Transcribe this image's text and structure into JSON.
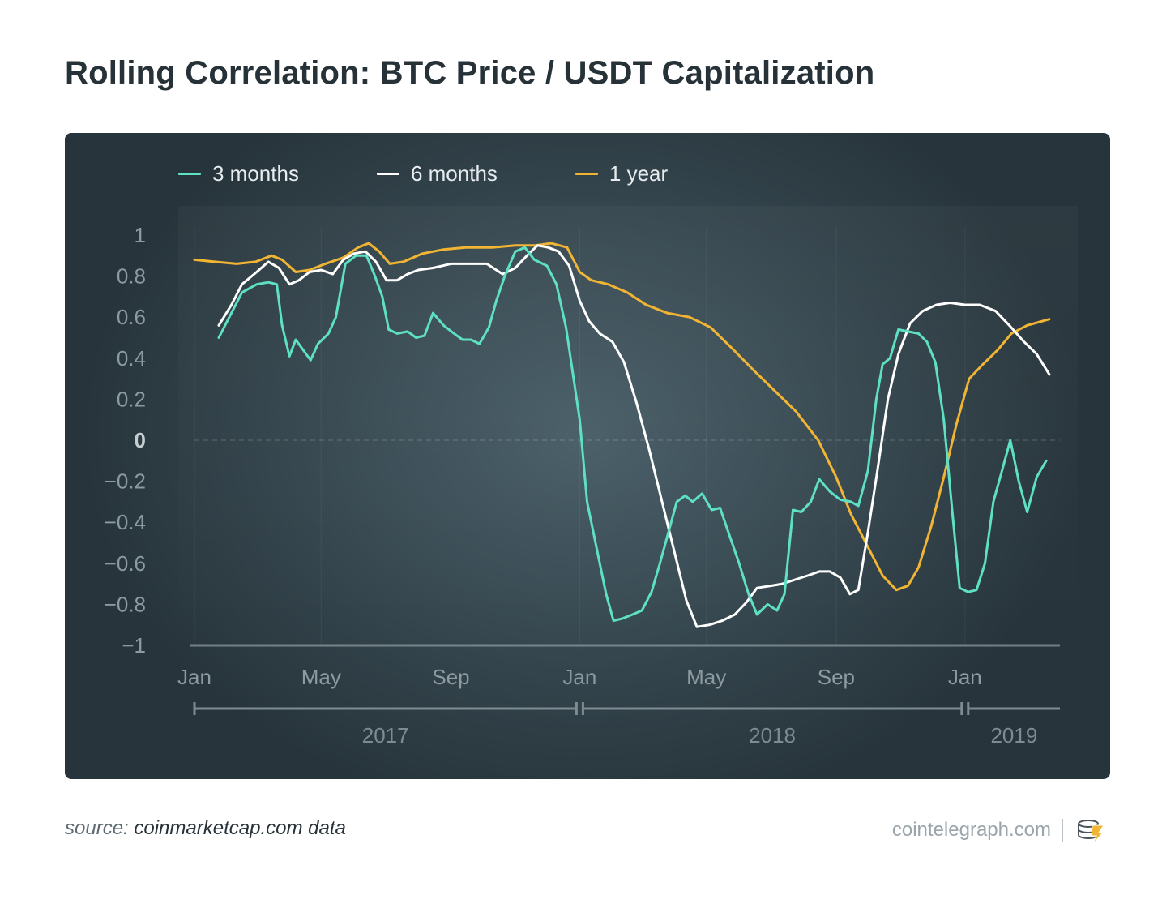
{
  "title": "Rolling Correlation: BTC Price / USDT Capitalization",
  "source": {
    "prefix": "source:",
    "value": "coinmarketcap.com data"
  },
  "brand": {
    "text": "cointelegraph.com",
    "logo_icon": "cointelegraph-logo-icon"
  },
  "colors": {
    "three_months": "#5ee0c4",
    "six_months": "#ffffff",
    "one_year": "#f2b533"
  },
  "chart_data": {
    "type": "line",
    "title": "Rolling Correlation: BTC Price / USDT Capitalization",
    "xlabel": "",
    "ylabel": "",
    "ylim": [
      -1,
      1
    ],
    "xlim": [
      "2017-01-01",
      "2019-04-01"
    ],
    "grid": true,
    "legend": "top-left",
    "y_ticks": [
      {
        "value": 1,
        "label": "1"
      },
      {
        "value": 0.8,
        "label": "0.8"
      },
      {
        "value": 0.6,
        "label": "0.6"
      },
      {
        "value": 0.4,
        "label": "0.4"
      },
      {
        "value": 0.2,
        "label": "0.2"
      },
      {
        "value": 0,
        "label": "0"
      },
      {
        "value": -0.2,
        "label": "−0.2"
      },
      {
        "value": -0.4,
        "label": "−0.4"
      },
      {
        "value": -0.6,
        "label": "−0.6"
      },
      {
        "value": -0.8,
        "label": "−0.8"
      },
      {
        "value": -1,
        "label": "−1"
      }
    ],
    "x_ticks": [
      {
        "date": "2017-01-01",
        "label": "Jan"
      },
      {
        "date": "2017-05-01",
        "label": "May"
      },
      {
        "date": "2017-09-01",
        "label": "Sep"
      },
      {
        "date": "2018-01-01",
        "label": "Jan"
      },
      {
        "date": "2018-05-01",
        "label": "May"
      },
      {
        "date": "2018-09-01",
        "label": "Sep"
      },
      {
        "date": "2019-01-01",
        "label": "Jan"
      }
    ],
    "year_labels": [
      {
        "label": "2017",
        "start": "2017-01-01",
        "end": "2018-01-01"
      },
      {
        "label": "2018",
        "start": "2018-01-01",
        "end": "2019-01-01"
      },
      {
        "label": "2019",
        "start": "2019-01-01",
        "end": "2019-04-01"
      }
    ],
    "series": [
      {
        "name": "3 months",
        "color": "#5ee0c4",
        "points": [
          [
            "2017-01-24",
            0.5
          ],
          [
            "2017-02-05",
            0.62
          ],
          [
            "2017-02-15",
            0.72
          ],
          [
            "2017-03-01",
            0.76
          ],
          [
            "2017-03-12",
            0.77
          ],
          [
            "2017-03-20",
            0.76
          ],
          [
            "2017-03-25",
            0.56
          ],
          [
            "2017-04-01",
            0.41
          ],
          [
            "2017-04-07",
            0.49
          ],
          [
            "2017-04-14",
            0.44
          ],
          [
            "2017-04-21",
            0.39
          ],
          [
            "2017-04-28",
            0.47
          ],
          [
            "2017-05-08",
            0.52
          ],
          [
            "2017-05-15",
            0.6
          ],
          [
            "2017-05-24",
            0.86
          ],
          [
            "2017-06-03",
            0.9
          ],
          [
            "2017-06-13",
            0.9
          ],
          [
            "2017-06-21",
            0.8
          ],
          [
            "2017-06-28",
            0.7
          ],
          [
            "2017-07-04",
            0.54
          ],
          [
            "2017-07-12",
            0.52
          ],
          [
            "2017-07-22",
            0.53
          ],
          [
            "2017-07-30",
            0.5
          ],
          [
            "2017-08-07",
            0.51
          ],
          [
            "2017-08-15",
            0.62
          ],
          [
            "2017-08-25",
            0.56
          ],
          [
            "2017-09-04",
            0.52
          ],
          [
            "2017-09-12",
            0.49
          ],
          [
            "2017-09-20",
            0.49
          ],
          [
            "2017-09-28",
            0.47
          ],
          [
            "2017-10-07",
            0.55
          ],
          [
            "2017-10-14",
            0.68
          ],
          [
            "2017-10-22",
            0.8
          ],
          [
            "2017-11-01",
            0.92
          ],
          [
            "2017-11-10",
            0.94
          ],
          [
            "2017-11-19",
            0.88
          ],
          [
            "2017-12-01",
            0.85
          ],
          [
            "2017-12-10",
            0.76
          ],
          [
            "2017-12-19",
            0.55
          ],
          [
            "2018-01-01",
            0.1
          ],
          [
            "2018-01-08",
            -0.3
          ],
          [
            "2018-01-18",
            -0.55
          ],
          [
            "2018-01-26",
            -0.75
          ],
          [
            "2018-02-02",
            -0.88
          ],
          [
            "2018-02-10",
            -0.87
          ],
          [
            "2018-02-20",
            -0.85
          ],
          [
            "2018-03-01",
            -0.83
          ],
          [
            "2018-03-10",
            -0.74
          ],
          [
            "2018-03-18",
            -0.6
          ],
          [
            "2018-03-26",
            -0.45
          ],
          [
            "2018-04-03",
            -0.3
          ],
          [
            "2018-04-11",
            -0.27
          ],
          [
            "2018-04-18",
            -0.3
          ],
          [
            "2018-04-27",
            -0.26
          ],
          [
            "2018-05-06",
            -0.34
          ],
          [
            "2018-05-14",
            -0.33
          ],
          [
            "2018-05-22",
            -0.45
          ],
          [
            "2018-06-01",
            -0.6
          ],
          [
            "2018-06-10",
            -0.75
          ],
          [
            "2018-06-18",
            -0.85
          ],
          [
            "2018-06-28",
            -0.8
          ],
          [
            "2018-07-07",
            -0.83
          ],
          [
            "2018-07-14",
            -0.75
          ],
          [
            "2018-07-22",
            -0.34
          ],
          [
            "2018-07-30",
            -0.35
          ],
          [
            "2018-08-08",
            -0.3
          ],
          [
            "2018-08-16",
            -0.19
          ],
          [
            "2018-08-26",
            -0.25
          ],
          [
            "2018-09-05",
            -0.29
          ],
          [
            "2018-09-15",
            -0.3
          ],
          [
            "2018-09-22",
            -0.32
          ],
          [
            "2018-10-01",
            -0.15
          ],
          [
            "2018-10-09",
            0.2
          ],
          [
            "2018-10-15",
            0.37
          ],
          [
            "2018-10-22",
            0.4
          ],
          [
            "2018-10-30",
            0.54
          ],
          [
            "2018-11-08",
            0.53
          ],
          [
            "2018-11-18",
            0.52
          ],
          [
            "2018-11-26",
            0.48
          ],
          [
            "2018-12-04",
            0.38
          ],
          [
            "2018-12-12",
            0.1
          ],
          [
            "2018-12-20",
            -0.35
          ],
          [
            "2018-12-27",
            -0.72
          ],
          [
            "2019-01-04",
            -0.74
          ],
          [
            "2019-01-12",
            -0.73
          ],
          [
            "2019-01-20",
            -0.6
          ],
          [
            "2019-01-28",
            -0.3
          ],
          [
            "2019-02-05",
            -0.15
          ],
          [
            "2019-02-13",
            0.0
          ],
          [
            "2019-02-21",
            -0.2
          ],
          [
            "2019-03-01",
            -0.35
          ],
          [
            "2019-03-10",
            -0.18
          ],
          [
            "2019-03-19",
            -0.1
          ]
        ]
      },
      {
        "name": "6 months",
        "color": "#ffffff",
        "points": [
          [
            "2017-01-24",
            0.56
          ],
          [
            "2017-02-05",
            0.66
          ],
          [
            "2017-02-15",
            0.76
          ],
          [
            "2017-03-01",
            0.82
          ],
          [
            "2017-03-12",
            0.87
          ],
          [
            "2017-03-22",
            0.84
          ],
          [
            "2017-04-01",
            0.76
          ],
          [
            "2017-04-10",
            0.78
          ],
          [
            "2017-04-20",
            0.82
          ],
          [
            "2017-05-01",
            0.83
          ],
          [
            "2017-05-12",
            0.81
          ],
          [
            "2017-05-22",
            0.88
          ],
          [
            "2017-06-01",
            0.91
          ],
          [
            "2017-06-12",
            0.92
          ],
          [
            "2017-06-22",
            0.87
          ],
          [
            "2017-07-02",
            0.78
          ],
          [
            "2017-07-12",
            0.78
          ],
          [
            "2017-07-22",
            0.81
          ],
          [
            "2017-08-01",
            0.83
          ],
          [
            "2017-08-15",
            0.84
          ],
          [
            "2017-09-01",
            0.86
          ],
          [
            "2017-09-20",
            0.86
          ],
          [
            "2017-10-05",
            0.86
          ],
          [
            "2017-10-20",
            0.81
          ],
          [
            "2017-11-01",
            0.84
          ],
          [
            "2017-11-12",
            0.9
          ],
          [
            "2017-11-22",
            0.95
          ],
          [
            "2017-12-02",
            0.94
          ],
          [
            "2017-12-12",
            0.92
          ],
          [
            "2017-12-22",
            0.85
          ],
          [
            "2018-01-01",
            0.68
          ],
          [
            "2018-01-10",
            0.58
          ],
          [
            "2018-01-20",
            0.52
          ],
          [
            "2018-02-01",
            0.48
          ],
          [
            "2018-02-12",
            0.38
          ],
          [
            "2018-02-24",
            0.18
          ],
          [
            "2018-03-08",
            -0.05
          ],
          [
            "2018-03-20",
            -0.3
          ],
          [
            "2018-04-01",
            -0.55
          ],
          [
            "2018-04-12",
            -0.78
          ],
          [
            "2018-04-22",
            -0.91
          ],
          [
            "2018-05-04",
            -0.9
          ],
          [
            "2018-05-16",
            -0.88
          ],
          [
            "2018-05-28",
            -0.85
          ],
          [
            "2018-06-08",
            -0.79
          ],
          [
            "2018-06-18",
            -0.72
          ],
          [
            "2018-07-01",
            -0.71
          ],
          [
            "2018-07-12",
            -0.7
          ],
          [
            "2018-07-24",
            -0.68
          ],
          [
            "2018-08-05",
            -0.66
          ],
          [
            "2018-08-16",
            -0.64
          ],
          [
            "2018-08-26",
            -0.64
          ],
          [
            "2018-09-05",
            -0.67
          ],
          [
            "2018-09-14",
            -0.75
          ],
          [
            "2018-09-22",
            -0.73
          ],
          [
            "2018-10-01",
            -0.45
          ],
          [
            "2018-10-10",
            -0.15
          ],
          [
            "2018-10-20",
            0.2
          ],
          [
            "2018-10-30",
            0.42
          ],
          [
            "2018-11-10",
            0.57
          ],
          [
            "2018-11-22",
            0.63
          ],
          [
            "2018-12-05",
            0.66
          ],
          [
            "2018-12-18",
            0.67
          ],
          [
            "2019-01-01",
            0.66
          ],
          [
            "2019-01-15",
            0.66
          ],
          [
            "2019-01-30",
            0.63
          ],
          [
            "2019-02-12",
            0.56
          ],
          [
            "2019-02-26",
            0.48
          ],
          [
            "2019-03-10",
            0.42
          ],
          [
            "2019-03-22",
            0.32
          ]
        ]
      },
      {
        "name": "1 year",
        "color": "#f2b533",
        "points": [
          [
            "2017-01-01",
            0.88
          ],
          [
            "2017-01-20",
            0.87
          ],
          [
            "2017-02-10",
            0.86
          ],
          [
            "2017-02-28",
            0.87
          ],
          [
            "2017-03-15",
            0.9
          ],
          [
            "2017-03-25",
            0.88
          ],
          [
            "2017-04-07",
            0.82
          ],
          [
            "2017-04-20",
            0.83
          ],
          [
            "2017-05-05",
            0.86
          ],
          [
            "2017-05-22",
            0.89
          ],
          [
            "2017-06-05",
            0.94
          ],
          [
            "2017-06-15",
            0.96
          ],
          [
            "2017-06-25",
            0.92
          ],
          [
            "2017-07-05",
            0.86
          ],
          [
            "2017-07-18",
            0.87
          ],
          [
            "2017-08-05",
            0.91
          ],
          [
            "2017-08-25",
            0.93
          ],
          [
            "2017-09-15",
            0.94
          ],
          [
            "2017-10-10",
            0.94
          ],
          [
            "2017-11-01",
            0.95
          ],
          [
            "2017-11-20",
            0.95
          ],
          [
            "2017-12-05",
            0.96
          ],
          [
            "2017-12-20",
            0.94
          ],
          [
            "2018-01-01",
            0.82
          ],
          [
            "2018-01-12",
            0.78
          ],
          [
            "2018-01-28",
            0.76
          ],
          [
            "2018-02-15",
            0.72
          ],
          [
            "2018-03-05",
            0.66
          ],
          [
            "2018-03-25",
            0.62
          ],
          [
            "2018-04-15",
            0.6
          ],
          [
            "2018-05-05",
            0.55
          ],
          [
            "2018-05-25",
            0.45
          ],
          [
            "2018-06-15",
            0.34
          ],
          [
            "2018-07-05",
            0.24
          ],
          [
            "2018-07-25",
            0.14
          ],
          [
            "2018-08-15",
            0.0
          ],
          [
            "2018-09-01",
            -0.18
          ],
          [
            "2018-09-15",
            -0.36
          ],
          [
            "2018-10-01",
            -0.52
          ],
          [
            "2018-10-15",
            -0.66
          ],
          [
            "2018-10-28",
            -0.73
          ],
          [
            "2018-11-08",
            -0.71
          ],
          [
            "2018-11-18",
            -0.62
          ],
          [
            "2018-11-30",
            -0.42
          ],
          [
            "2018-12-12",
            -0.18
          ],
          [
            "2018-12-24",
            0.08
          ],
          [
            "2019-01-05",
            0.3
          ],
          [
            "2019-01-18",
            0.37
          ],
          [
            "2019-02-01",
            0.44
          ],
          [
            "2019-02-14",
            0.52
          ],
          [
            "2019-03-01",
            0.56
          ],
          [
            "2019-03-22",
            0.59
          ]
        ]
      }
    ]
  }
}
